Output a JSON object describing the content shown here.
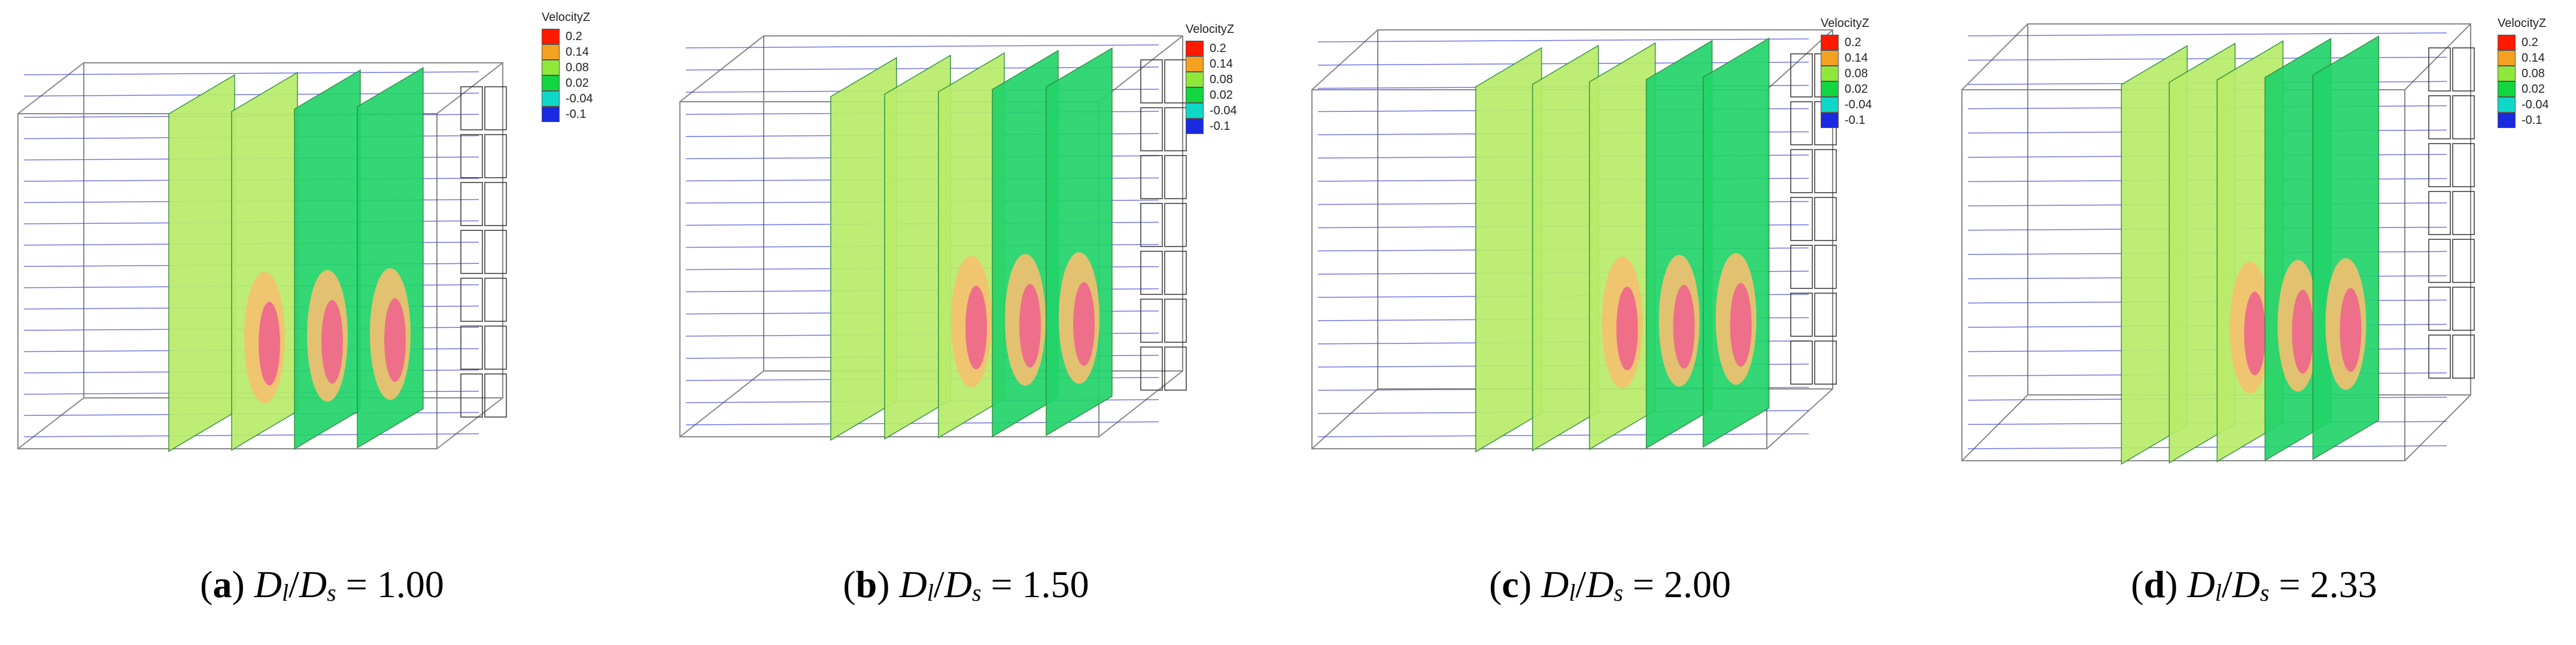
{
  "legend": {
    "title": "VelocityZ",
    "levels": [
      {
        "label": "0.2",
        "color": "#ff1a00"
      },
      {
        "label": "0.14",
        "color": "#f4a020"
      },
      {
        "label": "0.08",
        "color": "#8ee83a"
      },
      {
        "label": "0.02",
        "color": "#12d640"
      },
      {
        "label": "-0.04",
        "color": "#10d8c8"
      },
      {
        "label": "-0.1",
        "color": "#1a2ae0"
      }
    ]
  },
  "panels": [
    {
      "letter": "a",
      "ratio": "1.00"
    },
    {
      "letter": "b",
      "ratio": "1.50"
    },
    {
      "letter": "c",
      "ratio": "2.00"
    },
    {
      "letter": "d",
      "ratio": "2.33"
    }
  ],
  "caption_parts": {
    "open": "(",
    "close": ")",
    "num": "D",
    "sub_num": "l",
    "slash": "/",
    "den": "D",
    "sub_den": "s",
    "eq": " = "
  },
  "colors": {
    "light_green": "#b8ec6a",
    "green": "#22d46a",
    "orange": "#f5c070",
    "pink": "#ee6a8a",
    "streamline": "#3a3ad8",
    "outline": "#888888"
  }
}
